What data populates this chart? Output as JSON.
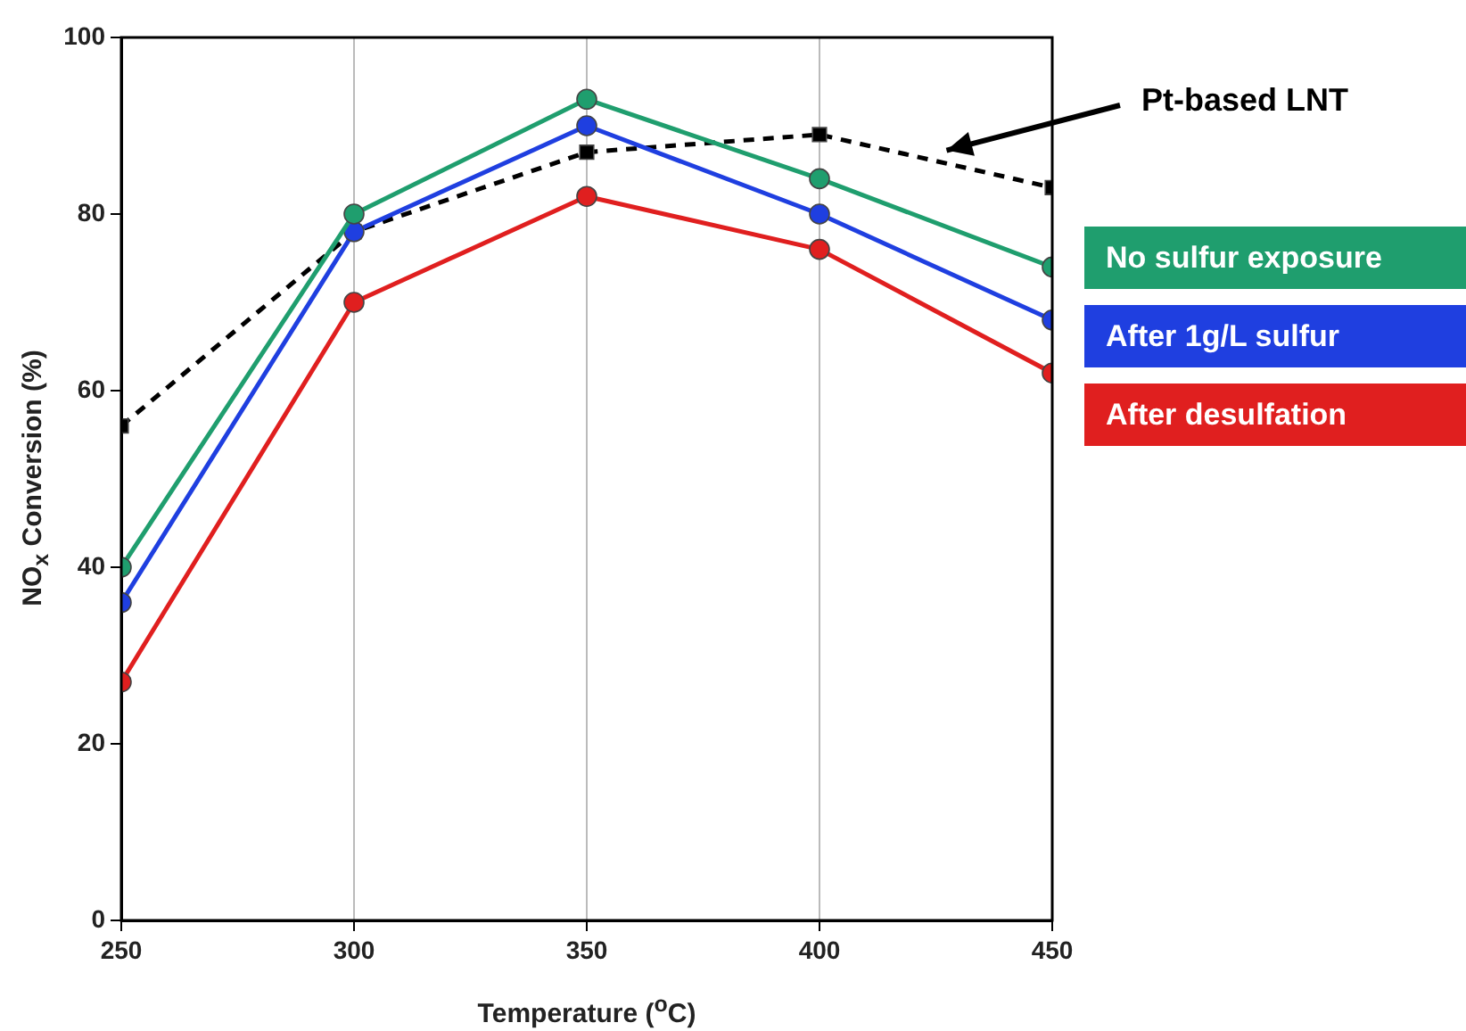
{
  "chart_data": {
    "type": "line",
    "xlabel": "Temperature ($^{o}$C)",
    "ylabel": "NO$_{x}$ Conversion (%)",
    "x": [
      250,
      300,
      350,
      400,
      450
    ],
    "series": [
      {
        "name": "No sulfur exposure",
        "color": "#1f9e6e",
        "marker": "circle",
        "line_style": "solid",
        "values": [
          40,
          80,
          93,
          84,
          74
        ]
      },
      {
        "name": "After 1g/L sulfur",
        "color": "#1f3fe0",
        "marker": "circle",
        "line_style": "solid",
        "values": [
          36,
          78,
          90,
          80,
          68
        ]
      },
      {
        "name": "After desulfation",
        "color": "#e01f1f",
        "marker": "circle",
        "line_style": "solid",
        "values": [
          27,
          70,
          82,
          76,
          62
        ]
      },
      {
        "color": "#000000",
        "marker": "square",
        "line_style": "dashed",
        "values": [
          56,
          78,
          87,
          89,
          83
        ]
      }
    ],
    "annotations": [
      "Pt-based LNT"
    ],
    "xlim": [
      250,
      450
    ],
    "xticks": [
      250,
      300,
      350,
      400,
      450
    ],
    "ylim": [
      0,
      100
    ],
    "yticks": [
      0,
      20,
      40,
      60,
      80,
      100
    ],
    "grid": "x",
    "legend": "right"
  }
}
